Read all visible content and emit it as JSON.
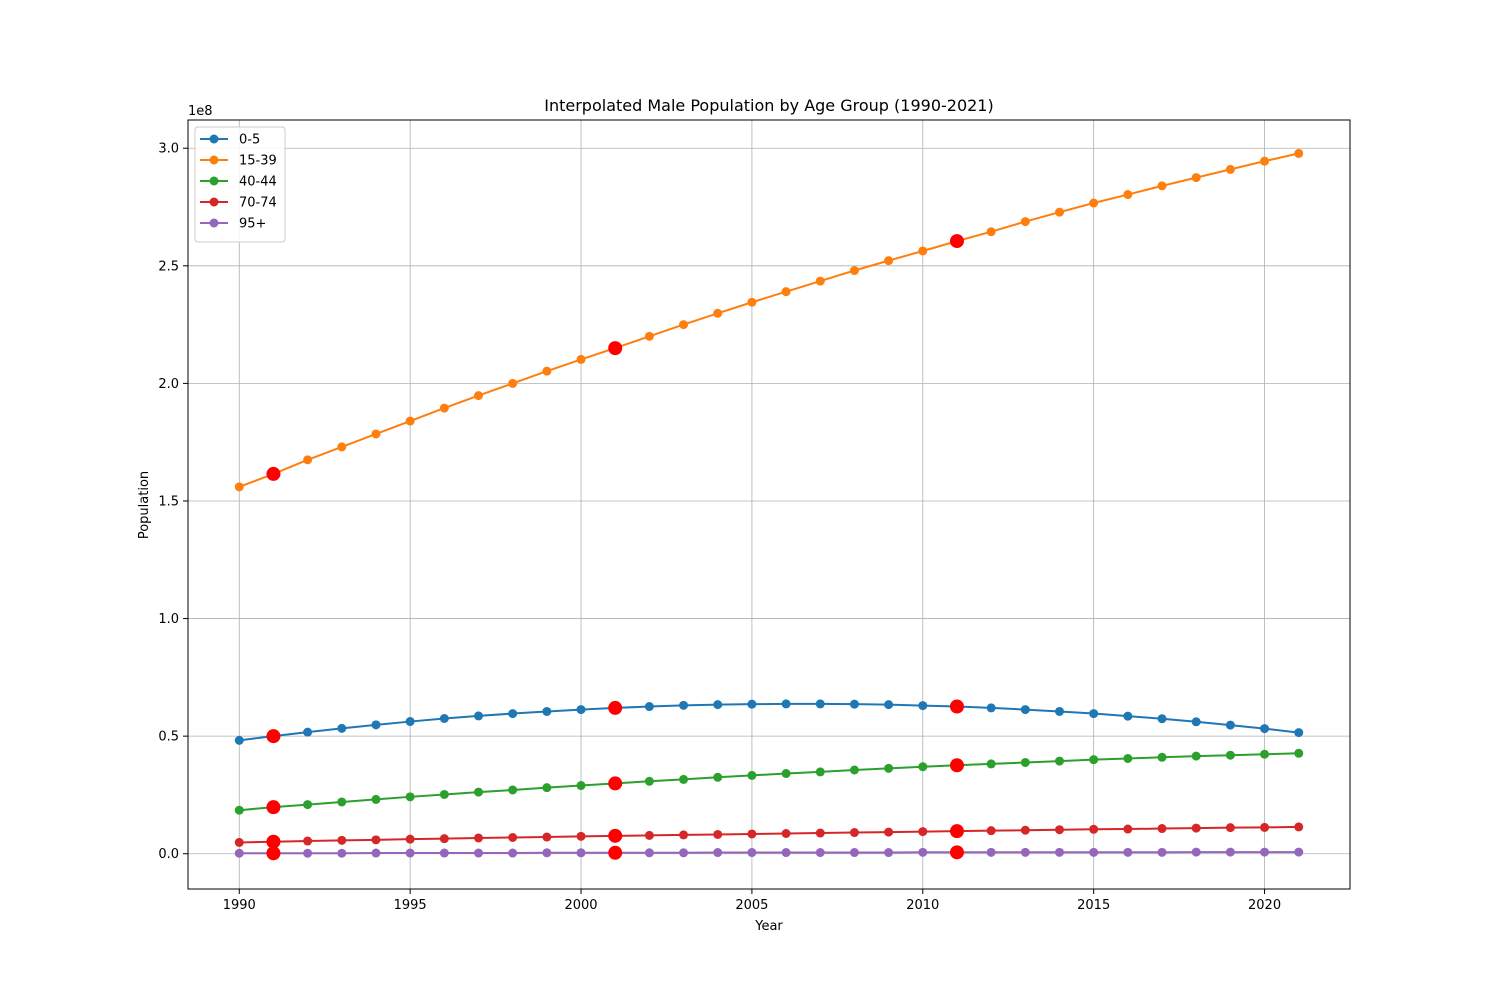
{
  "chart_data": {
    "type": "line",
    "title": "Interpolated Male Population by Age Group (1990-2021)",
    "xlabel": "Year",
    "ylabel": "Population",
    "y_multiplier_label": "1e8",
    "x_ticks": [
      1990,
      1995,
      2000,
      2005,
      2010,
      2015,
      2020
    ],
    "y_ticks": [
      0.0,
      0.5,
      1.0,
      1.5,
      2.0,
      2.5,
      3.0
    ],
    "y_tick_labels": [
      "0.0",
      "0.5",
      "1.0",
      "1.5",
      "2.0",
      "2.5",
      "3.0"
    ],
    "xlim": [
      1988.5,
      2022.5
    ],
    "ylim": [
      -0.15,
      3.12
    ],
    "y_unit_scale": 100000000,
    "grid": true,
    "legend_position": "upper-left",
    "highlight_color": "#ff0000",
    "highlight_years": [
      1991,
      2001,
      2011
    ],
    "x": [
      1990,
      1991,
      1992,
      1993,
      1994,
      1995,
      1996,
      1997,
      1998,
      1999,
      2000,
      2001,
      2002,
      2003,
      2004,
      2005,
      2006,
      2007,
      2008,
      2009,
      2010,
      2011,
      2012,
      2013,
      2014,
      2015,
      2016,
      2017,
      2018,
      2019,
      2020,
      2021
    ],
    "series": [
      {
        "name": "0-5",
        "color": "#1f77b4",
        "values": [
          0.482,
          0.5,
          0.517,
          0.533,
          0.548,
          0.562,
          0.575,
          0.586,
          0.596,
          0.605,
          0.613,
          0.62,
          0.626,
          0.631,
          0.634,
          0.636,
          0.637,
          0.637,
          0.636,
          0.634,
          0.63,
          0.626,
          0.62,
          0.613,
          0.605,
          0.596,
          0.585,
          0.574,
          0.561,
          0.547,
          0.532,
          0.515
        ]
      },
      {
        "name": "15-39",
        "color": "#ff7f0e",
        "values": [
          1.56,
          1.615,
          1.675,
          1.73,
          1.785,
          1.84,
          1.895,
          1.948,
          2.0,
          2.052,
          2.102,
          2.15,
          2.2,
          2.25,
          2.298,
          2.345,
          2.39,
          2.435,
          2.48,
          2.522,
          2.563,
          2.605,
          2.645,
          2.688,
          2.728,
          2.767,
          2.803,
          2.84,
          2.875,
          2.91,
          2.945,
          2.978
        ]
      },
      {
        "name": "40-44",
        "color": "#2ca02c",
        "values": [
          0.185,
          0.198,
          0.209,
          0.22,
          0.231,
          0.242,
          0.252,
          0.262,
          0.271,
          0.281,
          0.29,
          0.299,
          0.308,
          0.316,
          0.325,
          0.333,
          0.341,
          0.348,
          0.356,
          0.363,
          0.37,
          0.376,
          0.382,
          0.388,
          0.394,
          0.4,
          0.405,
          0.41,
          0.415,
          0.419,
          0.423,
          0.427
        ]
      },
      {
        "name": "70-74",
        "color": "#d62728",
        "values": [
          0.048,
          0.051,
          0.054,
          0.057,
          0.059,
          0.062,
          0.064,
          0.067,
          0.069,
          0.071,
          0.074,
          0.076,
          0.078,
          0.08,
          0.082,
          0.084,
          0.086,
          0.088,
          0.09,
          0.092,
          0.094,
          0.096,
          0.098,
          0.1,
          0.102,
          0.104,
          0.105,
          0.107,
          0.109,
          0.111,
          0.112,
          0.114
        ]
      },
      {
        "name": "95+",
        "color": "#9467bd",
        "values": [
          0.002,
          0.002,
          0.002,
          0.002,
          0.003,
          0.003,
          0.003,
          0.003,
          0.003,
          0.004,
          0.004,
          0.004,
          0.004,
          0.004,
          0.005,
          0.005,
          0.005,
          0.005,
          0.005,
          0.005,
          0.006,
          0.006,
          0.006,
          0.006,
          0.006,
          0.006,
          0.006,
          0.006,
          0.007,
          0.007,
          0.007,
          0.007
        ]
      }
    ]
  }
}
